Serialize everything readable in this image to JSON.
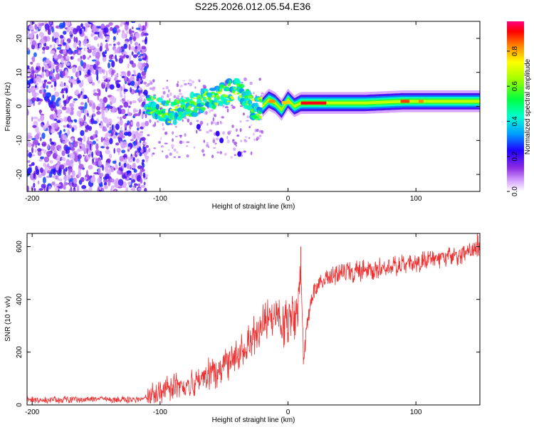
{
  "title": "S225.2026.012.05.54.E36",
  "chart_data": [
    {
      "type": "heatmap",
      "name": "frequency-spectrogram",
      "xlabel": "Height of straight line (km)",
      "ylabel": "Frequency (Hz)",
      "xlim": [
        -204,
        150
      ],
      "ylim": [
        -25,
        25
      ],
      "xticks": [
        -200,
        -100,
        0,
        100
      ],
      "yticks": [
        -20,
        -10,
        0,
        10,
        20
      ],
      "colorbar": {
        "label": "Normalized spectral amplitude",
        "range": [
          0.0,
          0.97
        ],
        "ticks": [
          0.0,
          0.2,
          0.4,
          0.6,
          0.8
        ]
      },
      "regions": [
        {
          "description": "noise",
          "x_range": [
            -204,
            -110
          ],
          "freq_range": [
            -25,
            25
          ],
          "amplitude": [
            0.05,
            0.3
          ]
        },
        {
          "description": "scattered",
          "x_range": [
            -110,
            -20
          ],
          "freq_range": [
            -15,
            8
          ],
          "amplitude": [
            0.2,
            0.5
          ]
        },
        {
          "description": "coherent line",
          "x_range": [
            -20,
            150
          ],
          "freq_center": [
            1,
            1
          ],
          "amplitude": [
            0.5,
            0.97
          ]
        }
      ],
      "ridge": [
        {
          "x": -110,
          "f": 1
        },
        {
          "x": -100,
          "f": -1
        },
        {
          "x": -90,
          "f": -2
        },
        {
          "x": -80,
          "f": 0
        },
        {
          "x": -70,
          "f": 1
        },
        {
          "x": -60,
          "f": 2
        },
        {
          "x": -50,
          "f": 4
        },
        {
          "x": -40,
          "f": 5
        },
        {
          "x": -30,
          "f": 1
        },
        {
          "x": -25,
          "f": -1
        },
        {
          "x": -20,
          "f": 0
        },
        {
          "x": -15,
          "f": 2
        },
        {
          "x": -10,
          "f": 1
        },
        {
          "x": -5,
          "f": -1
        },
        {
          "x": 0,
          "f": 2
        },
        {
          "x": 5,
          "f": 0
        },
        {
          "x": 10,
          "f": 1
        },
        {
          "x": 30,
          "f": 1
        },
        {
          "x": 60,
          "f": 1
        },
        {
          "x": 90,
          "f": 1.5
        },
        {
          "x": 120,
          "f": 1.5
        },
        {
          "x": 150,
          "f": 1.5
        }
      ]
    },
    {
      "type": "line",
      "name": "snr-trace",
      "xlabel": "Height of straight line (km)",
      "ylabel": "SNR (10 * v/v)",
      "xlim": [
        -204,
        150
      ],
      "ylim": [
        0,
        650
      ],
      "xticks": [
        -200,
        -100,
        0,
        100
      ],
      "yticks": [
        0,
        200,
        400,
        600
      ],
      "series": [
        {
          "name": "SNR",
          "color": "#ee3030",
          "x": [
            -204,
            -180,
            -160,
            -140,
            -120,
            -110,
            -100,
            -90,
            -80,
            -70,
            -60,
            -50,
            -45,
            -40,
            -35,
            -30,
            -25,
            -20,
            -15,
            -10,
            -5,
            0,
            5,
            8,
            10,
            12,
            15,
            20,
            25,
            30,
            40,
            50,
            60,
            70,
            80,
            90,
            100,
            110,
            120,
            130,
            140,
            150
          ],
          "y": [
            20,
            20,
            20,
            20,
            20,
            25,
            50,
            70,
            60,
            90,
            120,
            150,
            170,
            200,
            230,
            250,
            270,
            300,
            320,
            350,
            300,
            320,
            340,
            360,
            500,
            160,
            320,
            420,
            460,
            480,
            495,
            505,
            510,
            520,
            525,
            530,
            540,
            545,
            555,
            565,
            580,
            610
          ]
        }
      ],
      "noise": {
        "amplitude": [
          15,
          60
        ],
        "spikes": [
          {
            "x": 10,
            "y": 600
          },
          {
            "x": 148,
            "y": 650
          }
        ]
      }
    }
  ],
  "colors": {
    "frame": "#000000",
    "snr_line": "#ee3030",
    "noise_purple": "#8a2be2"
  }
}
